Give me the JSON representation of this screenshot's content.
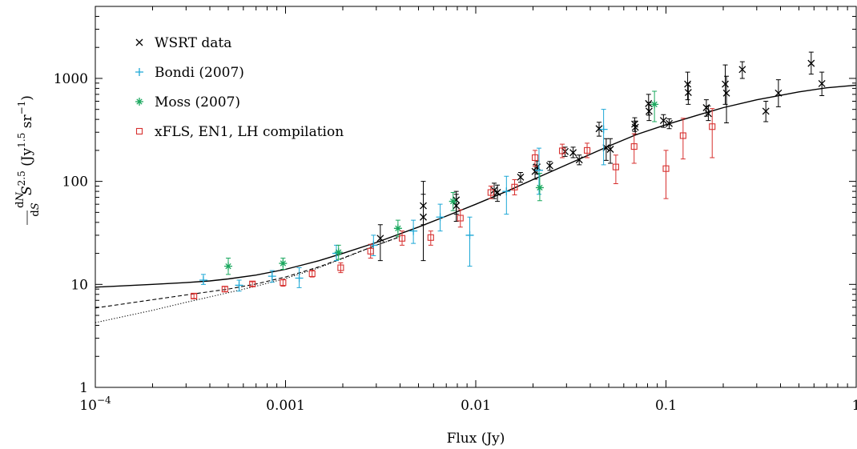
{
  "chart_data": {
    "type": "scatter",
    "title": "",
    "xlabel": "Flux (Jy)",
    "ylabel": "dN/dS S^2.5 (Jy^1.5 sr^-1)",
    "xscale": "log",
    "yscale": "log",
    "xlim": [
      0.0001,
      1
    ],
    "ylim": [
      1,
      5000
    ],
    "grid": false,
    "legend_position": "top-left",
    "x_ticks": [
      {
        "value": 0.0001,
        "label": "10",
        "sup": "−4"
      },
      {
        "value": 0.001,
        "label": "0.001",
        "sup": ""
      },
      {
        "value": 0.01,
        "label": "0.01",
        "sup": ""
      },
      {
        "value": 0.1,
        "label": "0.1",
        "sup": ""
      },
      {
        "value": 1,
        "label": "1",
        "sup": ""
      }
    ],
    "y_ticks": [
      {
        "value": 1,
        "label": "1"
      },
      {
        "value": 10,
        "label": "10"
      },
      {
        "value": 100,
        "label": "100"
      },
      {
        "value": 1000,
        "label": "1000"
      }
    ],
    "series": [
      {
        "name": "WSRT data",
        "marker": "cross",
        "color": "#000000",
        "points": [
          {
            "x": 0.00315,
            "y": 28,
            "lo": 17,
            "hi": 38
          },
          {
            "x": 0.0053,
            "y": 45,
            "lo": 17,
            "hi": 100
          },
          {
            "x": 0.0053,
            "y": 58,
            "lo": 38,
            "hi": 75
          },
          {
            "x": 0.0079,
            "y": 58,
            "lo": 41,
            "hi": 75
          },
          {
            "x": 0.0079,
            "y": 66,
            "lo": 48,
            "hi": 80
          },
          {
            "x": 0.0125,
            "y": 82,
            "lo": 68,
            "hi": 96
          },
          {
            "x": 0.013,
            "y": 78,
            "lo": 64,
            "hi": 92
          },
          {
            "x": 0.0172,
            "y": 110,
            "lo": 98,
            "hi": 122
          },
          {
            "x": 0.0205,
            "y": 125,
            "lo": 105,
            "hi": 145
          },
          {
            "x": 0.021,
            "y": 138,
            "lo": 118,
            "hi": 158
          },
          {
            "x": 0.0245,
            "y": 142,
            "lo": 128,
            "hi": 156
          },
          {
            "x": 0.0295,
            "y": 195,
            "lo": 175,
            "hi": 215
          },
          {
            "x": 0.0325,
            "y": 190,
            "lo": 170,
            "hi": 215
          },
          {
            "x": 0.035,
            "y": 162,
            "lo": 145,
            "hi": 180
          },
          {
            "x": 0.0445,
            "y": 325,
            "lo": 275,
            "hi": 375
          },
          {
            "x": 0.0485,
            "y": 212,
            "lo": 160,
            "hi": 260
          },
          {
            "x": 0.051,
            "y": 205,
            "lo": 150,
            "hi": 260
          },
          {
            "x": 0.0685,
            "y": 360,
            "lo": 305,
            "hi": 415
          },
          {
            "x": 0.069,
            "y": 335,
            "lo": 285,
            "hi": 385
          },
          {
            "x": 0.081,
            "y": 570,
            "lo": 440,
            "hi": 700
          },
          {
            "x": 0.0815,
            "y": 480,
            "lo": 390,
            "hi": 580
          },
          {
            "x": 0.097,
            "y": 390,
            "lo": 335,
            "hi": 445
          },
          {
            "x": 0.104,
            "y": 365,
            "lo": 325,
            "hi": 405
          },
          {
            "x": 0.13,
            "y": 880,
            "lo": 620,
            "hi": 1150
          },
          {
            "x": 0.131,
            "y": 730,
            "lo": 560,
            "hi": 900
          },
          {
            "x": 0.163,
            "y": 520,
            "lo": 430,
            "hi": 620
          },
          {
            "x": 0.167,
            "y": 455,
            "lo": 390,
            "hi": 540
          },
          {
            "x": 0.205,
            "y": 880,
            "lo": 560,
            "hi": 1350
          },
          {
            "x": 0.208,
            "y": 720,
            "lo": 370,
            "hi": 1050
          },
          {
            "x": 0.252,
            "y": 1220,
            "lo": 1000,
            "hi": 1450
          },
          {
            "x": 0.335,
            "y": 480,
            "lo": 380,
            "hi": 600
          },
          {
            "x": 0.39,
            "y": 720,
            "lo": 530,
            "hi": 970
          },
          {
            "x": 0.58,
            "y": 1400,
            "lo": 1100,
            "hi": 1800
          },
          {
            "x": 0.66,
            "y": 890,
            "lo": 680,
            "hi": 1150
          }
        ]
      },
      {
        "name": "Bondi (2007)",
        "marker": "plus",
        "color": "#1ea8d6",
        "points": [
          {
            "x": 0.00037,
            "y": 11,
            "lo": 10,
            "hi": 12.5
          },
          {
            "x": 0.00057,
            "y": 9.8,
            "lo": 8.6,
            "hi": 11
          },
          {
            "x": 0.00085,
            "y": 12,
            "lo": 10.5,
            "hi": 13.6
          },
          {
            "x": 0.00118,
            "y": 11.5,
            "lo": 9.3,
            "hi": 14.5
          },
          {
            "x": 0.00185,
            "y": 20,
            "lo": 17,
            "hi": 24
          },
          {
            "x": 0.0029,
            "y": 24,
            "lo": 19,
            "hi": 30
          },
          {
            "x": 0.0047,
            "y": 33,
            "lo": 25,
            "hi": 42
          },
          {
            "x": 0.0065,
            "y": 45,
            "lo": 33,
            "hi": 60
          },
          {
            "x": 0.0093,
            "y": 30,
            "lo": 15,
            "hi": 45
          },
          {
            "x": 0.0145,
            "y": 80,
            "lo": 48,
            "hi": 112
          },
          {
            "x": 0.0215,
            "y": 128,
            "lo": 75,
            "hi": 210
          },
          {
            "x": 0.047,
            "y": 320,
            "lo": 145,
            "hi": 500
          }
        ]
      },
      {
        "name": "Moss (2007)",
        "marker": "star",
        "color": "#1aa85e",
        "points": [
          {
            "x": 0.0005,
            "y": 15,
            "lo": 12.5,
            "hi": 18
          },
          {
            "x": 0.00097,
            "y": 16,
            "lo": 14,
            "hi": 18
          },
          {
            "x": 0.0019,
            "y": 20.5,
            "lo": 17.5,
            "hi": 24
          },
          {
            "x": 0.0039,
            "y": 35,
            "lo": 29,
            "hi": 42
          },
          {
            "x": 0.0076,
            "y": 64,
            "lo": 52,
            "hi": 78
          },
          {
            "x": 0.0217,
            "y": 87,
            "lo": 65,
            "hi": 120
          },
          {
            "x": 0.087,
            "y": 560,
            "lo": 380,
            "hi": 750
          }
        ]
      },
      {
        "name": "xFLS, EN1, LH compilation",
        "marker": "square",
        "color": "#d7302f",
        "points": [
          {
            "x": 0.00033,
            "y": 7.7,
            "lo": 7.3,
            "hi": 8.1
          },
          {
            "x": 0.00048,
            "y": 9,
            "lo": 8.5,
            "hi": 9.5
          },
          {
            "x": 0.00067,
            "y": 10.1,
            "lo": 9.6,
            "hi": 10.6
          },
          {
            "x": 0.00097,
            "y": 10.4,
            "lo": 9.6,
            "hi": 11.2
          },
          {
            "x": 0.00138,
            "y": 12.7,
            "lo": 11.8,
            "hi": 13.7
          },
          {
            "x": 0.00195,
            "y": 14.5,
            "lo": 13,
            "hi": 16.2
          },
          {
            "x": 0.0028,
            "y": 21,
            "lo": 18,
            "hi": 24.5
          },
          {
            "x": 0.0041,
            "y": 28,
            "lo": 24,
            "hi": 33
          },
          {
            "x": 0.0058,
            "y": 28.5,
            "lo": 24,
            "hi": 33
          },
          {
            "x": 0.0083,
            "y": 44,
            "lo": 36,
            "hi": 53
          },
          {
            "x": 0.012,
            "y": 78,
            "lo": 68,
            "hi": 90
          },
          {
            "x": 0.016,
            "y": 88,
            "lo": 74,
            "hi": 104
          },
          {
            "x": 0.0205,
            "y": 170,
            "lo": 140,
            "hi": 200
          },
          {
            "x": 0.0285,
            "y": 198,
            "lo": 170,
            "hi": 230
          },
          {
            "x": 0.0385,
            "y": 200,
            "lo": 170,
            "hi": 235
          },
          {
            "x": 0.0545,
            "y": 138,
            "lo": 95,
            "hi": 180
          },
          {
            "x": 0.068,
            "y": 218,
            "lo": 150,
            "hi": 290
          },
          {
            "x": 0.1,
            "y": 133,
            "lo": 68,
            "hi": 200
          },
          {
            "x": 0.123,
            "y": 278,
            "lo": 165,
            "hi": 410
          },
          {
            "x": 0.175,
            "y": 340,
            "lo": 170,
            "hi": 510
          }
        ]
      }
    ],
    "models": [
      {
        "style": "solid",
        "points": [
          [
            0.0001,
            9.4
          ],
          [
            0.0002,
            10.0
          ],
          [
            0.0003,
            10.4
          ],
          [
            0.0004,
            10.8
          ],
          [
            0.0005,
            11.3
          ],
          [
            0.0007,
            12.3
          ],
          [
            0.001,
            14.0
          ],
          [
            0.0015,
            17.0
          ],
          [
            0.002,
            20.0
          ],
          [
            0.003,
            25.5
          ],
          [
            0.005,
            36
          ],
          [
            0.007,
            46
          ],
          [
            0.01,
            60
          ],
          [
            0.015,
            82
          ],
          [
            0.02,
            104
          ],
          [
            0.03,
            145
          ],
          [
            0.05,
            220
          ],
          [
            0.07,
            285
          ],
          [
            0.1,
            355
          ],
          [
            0.15,
            445
          ],
          [
            0.2,
            520
          ],
          [
            0.3,
            620
          ],
          [
            0.5,
            740
          ],
          [
            0.7,
            810
          ],
          [
            1,
            860
          ]
        ]
      },
      {
        "style": "dashed",
        "points": [
          [
            0.0001,
            5.9
          ],
          [
            0.0002,
            7.1
          ],
          [
            0.0003,
            7.9
          ],
          [
            0.0005,
            9.0
          ],
          [
            0.0007,
            10.1
          ],
          [
            0.001,
            11.8
          ],
          [
            0.0015,
            14.8
          ],
          [
            0.002,
            18.0
          ],
          [
            0.003,
            24.0
          ],
          [
            0.004,
            29.0
          ]
        ]
      },
      {
        "style": "dotted",
        "points": [
          [
            0.0001,
            4.25
          ],
          [
            0.0002,
            5.6
          ],
          [
            0.0003,
            6.7
          ],
          [
            0.0005,
            8.3
          ],
          [
            0.0007,
            9.6
          ],
          [
            0.001,
            11.4
          ],
          [
            0.0015,
            14.5
          ],
          [
            0.002,
            17.8
          ],
          [
            0.003,
            24.0
          ],
          [
            0.004,
            29.0
          ]
        ]
      }
    ]
  }
}
